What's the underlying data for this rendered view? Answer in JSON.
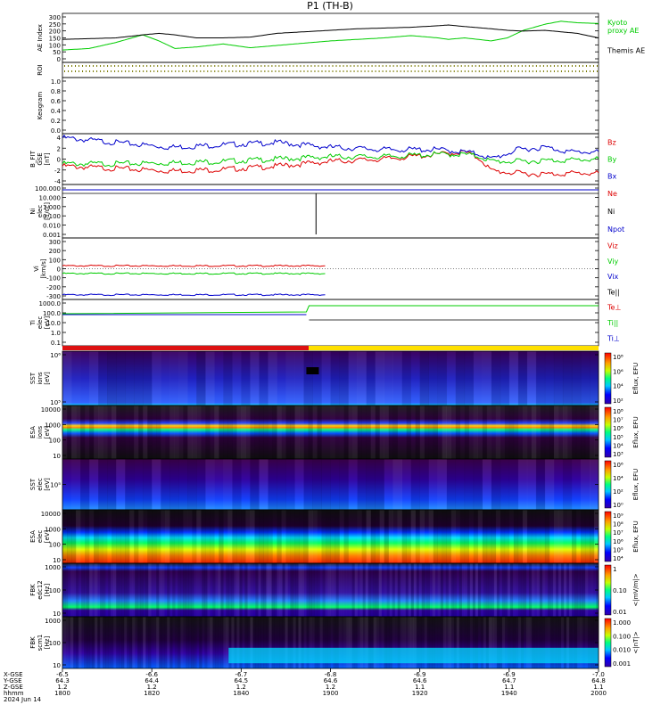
{
  "title": "P1  (TH-B)",
  "date_label": "2024 Jun 14",
  "colors": {
    "black": "#000000",
    "green": "#00cc00",
    "red": "#dd0000",
    "blue": "#0000cc",
    "flag_red": "#dd1111",
    "flag_yellow": "#ffe000"
  },
  "chart_data": [
    {
      "id": "ae",
      "type": "line",
      "ylabel": "AE Index",
      "yticks": [
        "300",
        "250",
        "200",
        "150",
        "100",
        "50",
        "0"
      ],
      "ylim": [
        0,
        300
      ],
      "series": [
        {
          "name": "Kyoto\nproxy AE",
          "color": "#00cc00",
          "x": [
            0,
            0.05,
            0.1,
            0.15,
            0.18,
            0.21,
            0.25,
            0.3,
            0.35,
            0.4,
            0.45,
            0.5,
            0.55,
            0.6,
            0.65,
            0.7,
            0.72,
            0.75,
            0.8,
            0.83,
            0.86,
            0.9,
            0.93,
            0.96,
            1.0
          ],
          "y": [
            70,
            80,
            120,
            170,
            130,
            80,
            90,
            110,
            85,
            100,
            115,
            130,
            140,
            150,
            165,
            150,
            140,
            150,
            130,
            150,
            200,
            240,
            260,
            250,
            245
          ]
        },
        {
          "name": "Themis AE",
          "color": "#000000",
          "x": [
            0,
            0.05,
            0.1,
            0.15,
            0.18,
            0.21,
            0.25,
            0.3,
            0.35,
            0.4,
            0.45,
            0.5,
            0.55,
            0.6,
            0.65,
            0.7,
            0.72,
            0.75,
            0.8,
            0.83,
            0.86,
            0.9,
            0.93,
            0.96,
            1.0
          ],
          "y": [
            140,
            145,
            150,
            170,
            180,
            170,
            150,
            150,
            155,
            180,
            190,
            200,
            210,
            215,
            220,
            230,
            235,
            225,
            210,
            200,
            195,
            200,
            190,
            180,
            150
          ]
        }
      ]
    },
    {
      "id": "roi",
      "type": "line",
      "ylabel": "ROI",
      "yticks": [],
      "series": []
    },
    {
      "id": "keogram",
      "type": "heatmap",
      "ylabel": "Keogram",
      "yticks": [
        "1.0",
        "0.8",
        "0.6",
        "0.4",
        "0.2",
        "0.0"
      ],
      "ylim": [
        0,
        1
      ]
    },
    {
      "id": "bfield",
      "type": "line",
      "ylabel": "B_FIT\nGSE\n[nT]",
      "yticks": [
        "4",
        "2",
        "0",
        "-2",
        "-4"
      ],
      "ylim": [
        -5,
        5
      ],
      "series": [
        {
          "name": "Bz",
          "color": "#dd0000",
          "x": [
            0,
            0.1,
            0.2,
            0.3,
            0.4,
            0.5,
            0.6,
            0.7,
            0.75,
            0.78,
            0.8,
            0.85,
            0.9,
            0.95,
            1.0
          ],
          "y": [
            -1.5,
            -2,
            -2.5,
            -2.2,
            -1.5,
            -0.5,
            0,
            1,
            1.5,
            0,
            -2.5,
            -3,
            -3.2,
            -3,
            -3
          ]
        },
        {
          "name": "By",
          "color": "#00cc00",
          "x": [
            0,
            0.1,
            0.2,
            0.3,
            0.4,
            0.5,
            0.6,
            0.7,
            0.75,
            0.78,
            0.8,
            0.85,
            0.9,
            0.95,
            1.0
          ],
          "y": [
            -1,
            -1,
            -0.8,
            -0.5,
            0,
            0.5,
            0.5,
            1,
            1,
            0.5,
            -0.5,
            -0.5,
            -0.3,
            -0.2,
            0
          ]
        },
        {
          "name": "Bx",
          "color": "#0000cc",
          "x": [
            0,
            0.1,
            0.2,
            0.3,
            0.4,
            0.5,
            0.6,
            0.7,
            0.75,
            0.78,
            0.8,
            0.85,
            0.9,
            0.95,
            1.0
          ],
          "y": [
            4.5,
            3.5,
            2.5,
            3,
            3.5,
            2.5,
            2,
            2,
            1.5,
            1,
            0,
            2,
            2.5,
            1.5,
            1.5
          ]
        }
      ]
    },
    {
      "id": "density",
      "type": "line",
      "ylabel": "Ni\nelec\n[1/cc]",
      "yticks": [
        "100.000",
        "10.000",
        "1.000",
        "0.100",
        "0.010",
        "0.001"
      ],
      "series": [
        {
          "name": "Ne",
          "color": "#dd0000"
        },
        {
          "name": "Ni",
          "color": "#000000"
        },
        {
          "name": "Npot",
          "color": "#0000cc"
        }
      ]
    },
    {
      "id": "velocity",
      "type": "line",
      "ylabel": "Vi\n[km/s]",
      "yticks": [
        "300",
        "200",
        "100",
        "0",
        "-100",
        "-200",
        "-300"
      ],
      "ylim": [
        -300,
        300
      ],
      "series": [
        {
          "name": "Viz",
          "color": "#dd0000",
          "x": [
            0,
            0.49
          ],
          "y": [
            30,
            30
          ]
        },
        {
          "name": "Viy",
          "color": "#00cc00",
          "x": [
            0,
            0.49
          ],
          "y": [
            -50,
            -50
          ]
        },
        {
          "name": "Vix",
          "color": "#0000cc",
          "x": [
            0,
            0.49
          ],
          "y": [
            -270,
            -270
          ]
        },
        {
          "name": "Te||",
          "color": "#000000"
        }
      ]
    },
    {
      "id": "temperature",
      "type": "line",
      "ylabel": "Ti\nelec\n[eV]",
      "yticks": [
        "1000.0",
        "100.0",
        "10.0",
        "1.0",
        "0.1"
      ],
      "series": [
        {
          "name": "Te⊥",
          "color": "#dd0000"
        },
        {
          "name": "Ti||",
          "color": "#00cc00"
        },
        {
          "name": "Ti⊥",
          "color": "#0000cc"
        }
      ]
    },
    {
      "id": "sst_ion",
      "type": "heatmap",
      "ylabel": "SST\nions\n[eV]",
      "yticks": [
        "10⁶",
        "10⁵"
      ],
      "colorbar": {
        "label": "Eflux, EFU",
        "ticks": [
          "10⁸",
          "10⁶",
          "10⁴",
          "10²"
        ]
      }
    },
    {
      "id": "esa_ion",
      "type": "heatmap",
      "ylabel": "ESA\nions\n[eV]",
      "yticks": [
        "10000",
        "1000",
        "100",
        "10"
      ],
      "colorbar": {
        "label": "Eflux, EFU",
        "ticks": [
          "10⁸",
          "10⁷",
          "10⁶",
          "10⁵",
          "10⁴",
          "10³"
        ]
      }
    },
    {
      "id": "sst_elec",
      "type": "heatmap",
      "ylabel": "SST\nelec\n[eV]",
      "yticks": [
        "10⁵"
      ],
      "colorbar": {
        "label": "Eflux, EFU",
        "ticks": [
          "10⁶",
          "10⁴",
          "10²",
          "10⁰"
        ]
      }
    },
    {
      "id": "esa_elec",
      "type": "heatmap",
      "ylabel": "ESA\nelec\n[eV]",
      "yticks": [
        "10000",
        "1000",
        "100",
        "10"
      ],
      "colorbar": {
        "label": "Eflux, EFU",
        "ticks": [
          "10⁹",
          "10⁸",
          "10⁷",
          "10⁶",
          "10⁵",
          "10⁴"
        ]
      }
    },
    {
      "id": "fbk_e",
      "type": "heatmap",
      "ylabel": "FBK\nedc12\n[Hz]",
      "yticks": [
        "1000",
        "100",
        "10"
      ],
      "colorbar": {
        "label": "<|mV/m|>",
        "ticks": [
          "1",
          "0.10",
          "0.01"
        ]
      }
    },
    {
      "id": "fbk_b",
      "type": "heatmap",
      "ylabel": "FBK\nscm1\n[Hz]",
      "yticks": [
        "1000",
        "100",
        "10"
      ],
      "colorbar": {
        "label": "<|nT|>",
        "ticks": [
          "1.000",
          "0.100",
          "0.010",
          "0.001"
        ]
      }
    }
  ],
  "x_axis": {
    "row_labels": [
      "X-GSE",
      "Y-GSE",
      "Z-GSE",
      "hhmm",
      "2024 Jun 14"
    ],
    "ticks": [
      {
        "x": "-6.5",
        "y": "64.3",
        "z": "1.2",
        "t": "1800"
      },
      {
        "x": "-6.6",
        "y": "64.4",
        "z": "1.2",
        "t": "1820"
      },
      {
        "x": "-6.7",
        "y": "64.5",
        "z": "1.2",
        "t": "1840"
      },
      {
        "x": "-6.8",
        "y": "64.6",
        "z": "1.2",
        "t": "1900"
      },
      {
        "x": "-6.9",
        "y": "64.6",
        "z": "1.1",
        "t": "1920"
      },
      {
        "x": "-6.9",
        "y": "64.7",
        "z": "1.1",
        "t": "1940"
      },
      {
        "x": "-7.0",
        "y": "64.8",
        "z": "1.1",
        "t": "2000"
      }
    ]
  }
}
